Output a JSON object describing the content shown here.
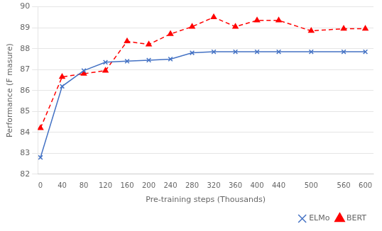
{
  "chart_data": {
    "type": "line",
    "xlabel": "Pre-training steps (Thousands)",
    "ylabel": "Performance (F masure)",
    "x": [
      0,
      40,
      80,
      120,
      160,
      200,
      240,
      280,
      320,
      360,
      400,
      440,
      500,
      560,
      600
    ],
    "series": [
      {
        "name": "ELMo",
        "color": "#4472C4",
        "marker": "x",
        "line_style": "solid",
        "values": [
          82.8,
          86.2,
          86.95,
          87.35,
          87.4,
          87.45,
          87.5,
          87.8,
          87.85,
          87.85,
          87.85,
          87.85,
          87.85,
          87.85,
          87.85
        ]
      },
      {
        "name": "BERT",
        "color": "#FF0000",
        "marker": "triangle",
        "line_style": "dashed",
        "values": [
          84.2,
          86.65,
          86.8,
          86.95,
          88.35,
          88.2,
          88.7,
          89.05,
          89.5,
          89.05,
          89.35,
          89.35,
          88.85,
          88.95,
          88.95
        ]
      }
    ],
    "xlim": [
      -5,
      615
    ],
    "xticks": [
      0,
      40,
      80,
      120,
      160,
      200,
      240,
      280,
      320,
      360,
      400,
      440,
      500,
      560,
      600
    ],
    "ylim": [
      82,
      90
    ],
    "yticks": [
      82,
      83,
      84,
      85,
      86,
      87,
      88,
      89,
      90
    ],
    "grid": "y",
    "legend": "lower right"
  }
}
